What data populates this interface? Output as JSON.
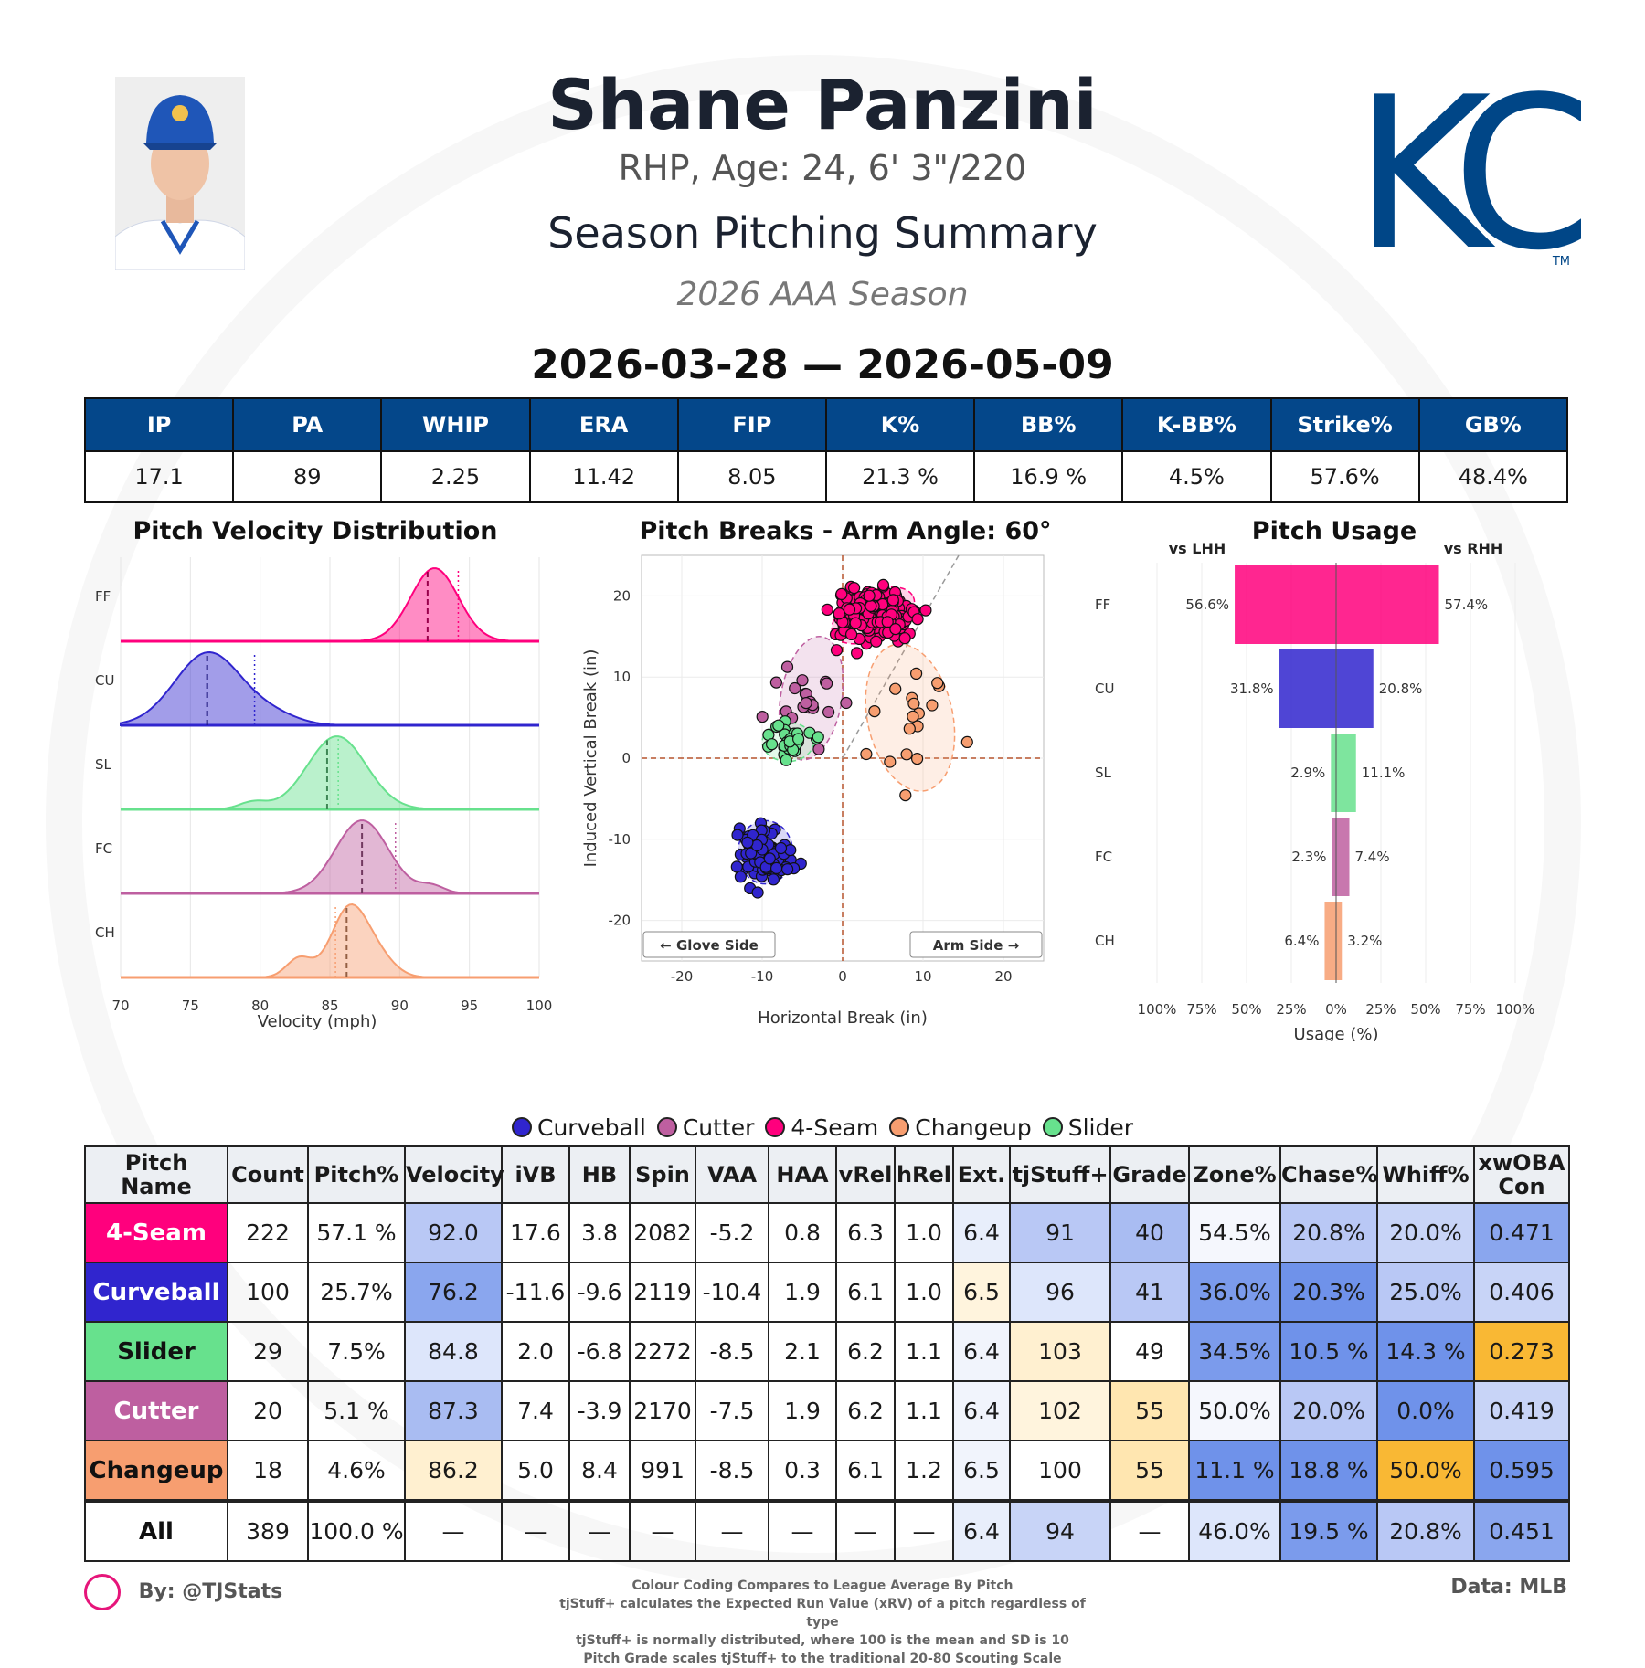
{
  "header": {
    "player_name": "Shane Panzini",
    "bio": "RHP, Age: 24, 6' 3\"/220",
    "subtitle": "Season Pitching Summary",
    "season": "2026 AAA Season",
    "date_range": "2026-03-28 — 2026-05-09",
    "logo_text": "KC",
    "logo_tm": "TM"
  },
  "season_stats": {
    "headers": [
      "IP",
      "PA",
      "WHIP",
      "ERA",
      "FIP",
      "K%",
      "BB%",
      "K-BB%",
      "Strike%",
      "GB%"
    ],
    "values": [
      "17.1",
      "89",
      "2.25",
      "11.42",
      "8.05",
      "21.3 %",
      "16.9 %",
      "4.5%",
      "57.6%",
      "48.4%"
    ]
  },
  "chart_data": [
    {
      "type": "area",
      "id": "velocity",
      "title": "Pitch Velocity Distribution",
      "xlabel": "Velocity (mph)",
      "xlim": [
        70,
        100
      ],
      "xticks": [
        70,
        75,
        80,
        85,
        90,
        95,
        100
      ],
      "series": [
        {
          "name": "FF",
          "color": "#ff007d",
          "mean": 92.0,
          "league": 94.2,
          "components": [
            [
              92.5,
              1.7,
              1.0
            ]
          ]
        },
        {
          "name": "CU",
          "color": "#3025ce",
          "mean": 76.2,
          "league": 79.6,
          "components": [
            [
              76.3,
              2.4,
              1.0
            ],
            [
              81,
              1.8,
              0.12
            ]
          ]
        },
        {
          "name": "SL",
          "color": "#67e18d",
          "mean": 84.8,
          "league": 85.6,
          "components": [
            [
              85.5,
              2.1,
              1.0
            ],
            [
              79.5,
              1.0,
              0.1
            ]
          ]
        },
        {
          "name": "FC",
          "color": "#be5fa0",
          "mean": 87.3,
          "league": 89.7,
          "components": [
            [
              87.3,
              1.9,
              1.0
            ],
            [
              92.3,
              0.9,
              0.1
            ]
          ]
        },
        {
          "name": "CH",
          "color": "#f79e70",
          "mean": 86.2,
          "league": 85.4,
          "components": [
            [
              86.4,
              1.3,
              1.0
            ],
            [
              82.8,
              0.9,
              0.28
            ],
            [
              88.5,
              1.2,
              0.25
            ]
          ]
        }
      ]
    },
    {
      "type": "scatter",
      "id": "breaks",
      "title": "Pitch Breaks - Arm Angle: 60°",
      "xlabel": "Horizontal Break (in)",
      "ylabel": "Induced Vertical Break (in)",
      "xlim": [
        -25,
        25
      ],
      "ylim": [
        -25,
        25
      ],
      "xticks": [
        -20,
        -10,
        0,
        10,
        20
      ],
      "yticks": [
        -20,
        -10,
        0,
        10,
        20
      ],
      "glove_label": "← Glove Side",
      "arm_label": "Arm Side →",
      "arm_angle_deg": 60,
      "series": [
        {
          "name": "4-Seam",
          "color": "#ff007d",
          "count": 222,
          "center": [
            3.8,
            17.6
          ],
          "spread": [
            2.4,
            1.5
          ],
          "ellipse": [
            5.5,
            2.9,
            -25
          ]
        },
        {
          "name": "Curveball",
          "color": "#3025ce",
          "count": 100,
          "center": [
            -9.6,
            -11.6
          ],
          "spread": [
            1.6,
            1.6
          ],
          "ellipse": [
            3.4,
            3.9,
            0
          ]
        },
        {
          "name": "Slider",
          "color": "#67e18d",
          "count": 29,
          "center": [
            -6.8,
            2.0
          ],
          "spread": [
            1.5,
            1.2
          ],
          "ellipse": [
            3.2,
            2.4,
            0
          ]
        },
        {
          "name": "Cutter",
          "color": "#be5fa0",
          "count": 20,
          "center": [
            -3.9,
            7.4
          ],
          "spread": [
            2.3,
            2.5
          ],
          "ellipse": [
            3.8,
            7.7,
            10
          ]
        },
        {
          "name": "Changeup",
          "color": "#f79e70",
          "count": 18,
          "center": [
            8.4,
            5.0
          ],
          "spread": [
            2.5,
            4.8
          ],
          "ellipse": [
            5.3,
            9.2,
            -12
          ]
        }
      ]
    },
    {
      "type": "bar",
      "id": "usage",
      "title": "Pitch Usage",
      "xlabel": "Usage (%)",
      "left_label": "vs LHH",
      "right_label": "vs RHH",
      "xticks": [
        "100%",
        "75%",
        "50%",
        "25%",
        "0%",
        "25%",
        "50%",
        "75%",
        "100%"
      ],
      "categories": [
        "FF",
        "CU",
        "SL",
        "FC",
        "CH"
      ],
      "colors": [
        "#ff007d",
        "#3025ce",
        "#67e18d",
        "#be5fa0",
        "#f79e70"
      ],
      "series": [
        {
          "name": "vs LHH",
          "values": [
            56.6,
            31.8,
            2.9,
            2.3,
            6.4
          ]
        },
        {
          "name": "vs RHH",
          "values": [
            57.4,
            20.8,
            11.1,
            7.4,
            3.2
          ]
        }
      ]
    }
  ],
  "legend": [
    {
      "name": "Curveball",
      "color": "#3025ce"
    },
    {
      "name": "Cutter",
      "color": "#be5fa0"
    },
    {
      "name": "4-Seam",
      "color": "#ff007d"
    },
    {
      "name": "Changeup",
      "color": "#f79e70"
    },
    {
      "name": "Slider",
      "color": "#67e18d"
    }
  ],
  "pitch_table": {
    "headers": [
      "Pitch Name",
      "Count",
      "Pitch%",
      "Velocity",
      "iVB",
      "HB",
      "Spin",
      "VAA",
      "HAA",
      "vRel",
      "hRel",
      "Ext.",
      "tjStuff+",
      "Grade",
      "Zone%",
      "Chase%",
      "Whiff%",
      "xwOBA Con"
    ],
    "rows": [
      {
        "name": "4-Seam",
        "name_bg": "#ff007d",
        "name_fg": "#ffffff",
        "cells": [
          "222",
          "57.1 %",
          "92.0",
          "17.6",
          "3.8",
          "2082",
          "-5.2",
          "0.8",
          "6.3",
          "1.0",
          "6.4",
          "91",
          "40",
          "54.5%",
          "20.8%",
          "20.0%",
          "0.471"
        ],
        "colors": [
          "",
          "",
          "#b9c8f5",
          "",
          "",
          "",
          "",
          "",
          "",
          "",
          "#e8eefb",
          "#b9c8f5",
          "#a9bcf2",
          "#f5f7fd",
          "#b9c8f5",
          "#c8d4f7",
          "#8aa6ee"
        ]
      },
      {
        "name": "Curveball",
        "name_bg": "#3025ce",
        "name_fg": "#ffffff",
        "cells": [
          "100",
          "25.7%",
          "76.2",
          "-11.6",
          "-9.6",
          "2119",
          "-10.4",
          "1.9",
          "6.1",
          "1.0",
          "6.5",
          "96",
          "41",
          "36.0%",
          "20.3%",
          "25.0%",
          "0.406"
        ],
        "colors": [
          "",
          "",
          "#8aa6ee",
          "",
          "",
          "",
          "",
          "",
          "",
          "",
          "#fff4dd",
          "#dde6fb",
          "#b9c8f5",
          "#7b9bec",
          "#6f92ea",
          "#b9c8f5",
          "#c8d4f7"
        ]
      },
      {
        "name": "Slider",
        "name_bg": "#67e18d",
        "name_fg": "#111111",
        "cells": [
          "29",
          "7.5%",
          "84.8",
          "2.0",
          "-6.8",
          "2272",
          "-8.5",
          "2.1",
          "6.2",
          "1.1",
          "6.4",
          "103",
          "49",
          "34.5%",
          "10.5 %",
          "14.3 %",
          "0.273"
        ],
        "colors": [
          "",
          "",
          "#dde6fb",
          "",
          "",
          "",
          "",
          "",
          "",
          "",
          "#f1f4fc",
          "#fff0d0",
          "#ffffff",
          "#7b9bec",
          "#6f92ea",
          "#6f92ea",
          "#f9b834"
        ]
      },
      {
        "name": "Cutter",
        "name_bg": "#be5fa0",
        "name_fg": "#ffffff",
        "cells": [
          "20",
          "5.1 %",
          "87.3",
          "7.4",
          "-3.9",
          "2170",
          "-7.5",
          "1.9",
          "6.2",
          "1.1",
          "6.4",
          "102",
          "55",
          "50.0%",
          "20.0%",
          "0.0%",
          "0.419"
        ],
        "colors": [
          "",
          "",
          "#a9bcf2",
          "",
          "",
          "",
          "",
          "",
          "",
          "",
          "#f1f4fc",
          "#fff4dd",
          "#ffe6b0",
          "#f5f7fd",
          "#b9c8f5",
          "#6f92ea",
          "#c8d4f7"
        ]
      },
      {
        "name": "Changeup",
        "name_bg": "#f79e70",
        "name_fg": "#111111",
        "cells": [
          "18",
          "4.6%",
          "86.2",
          "5.0",
          "8.4",
          "991",
          "-8.5",
          "0.3",
          "6.1",
          "1.2",
          "6.5",
          "100",
          "55",
          "11.1 %",
          "18.8 %",
          "50.0%",
          "0.595"
        ],
        "colors": [
          "",
          "",
          "#fff0d0",
          "",
          "",
          "",
          "",
          "",
          "",
          "",
          "#f1f4fc",
          "#ffffff",
          "#ffe6b0",
          "#6f92ea",
          "#6f92ea",
          "#f9b834",
          "#6f92ea"
        ]
      },
      {
        "name": "All",
        "name_bg": "#ffffff",
        "name_fg": "#111111",
        "cells": [
          "389",
          "100.0 %",
          "—",
          "—",
          "—",
          "—",
          "—",
          "—",
          "—",
          "—",
          "6.4",
          "94",
          "—",
          "46.0%",
          "19.5 %",
          "20.8%",
          "0.451"
        ],
        "colors": [
          "",
          "",
          "",
          "",
          "",
          "",
          "",
          "",
          "",
          "",
          "#e8eefb",
          "#c8d4f7",
          "",
          "#dde6fb",
          "#7b9bec",
          "#b9c8f5",
          "#8aa6ee"
        ]
      }
    ]
  },
  "footer": {
    "byline": "By: @TJStats",
    "data_source": "Data: MLB",
    "notes": [
      "Colour Coding Compares to League Average By Pitch",
      "tjStuff+ calculates the Expected Run Value (xRV) of a pitch regardless of type",
      "tjStuff+ is normally distributed, where 100 is the mean and SD is 10",
      "Pitch Grade scales tjStuff+ to the traditional 20-80 Scouting Scale"
    ]
  }
}
